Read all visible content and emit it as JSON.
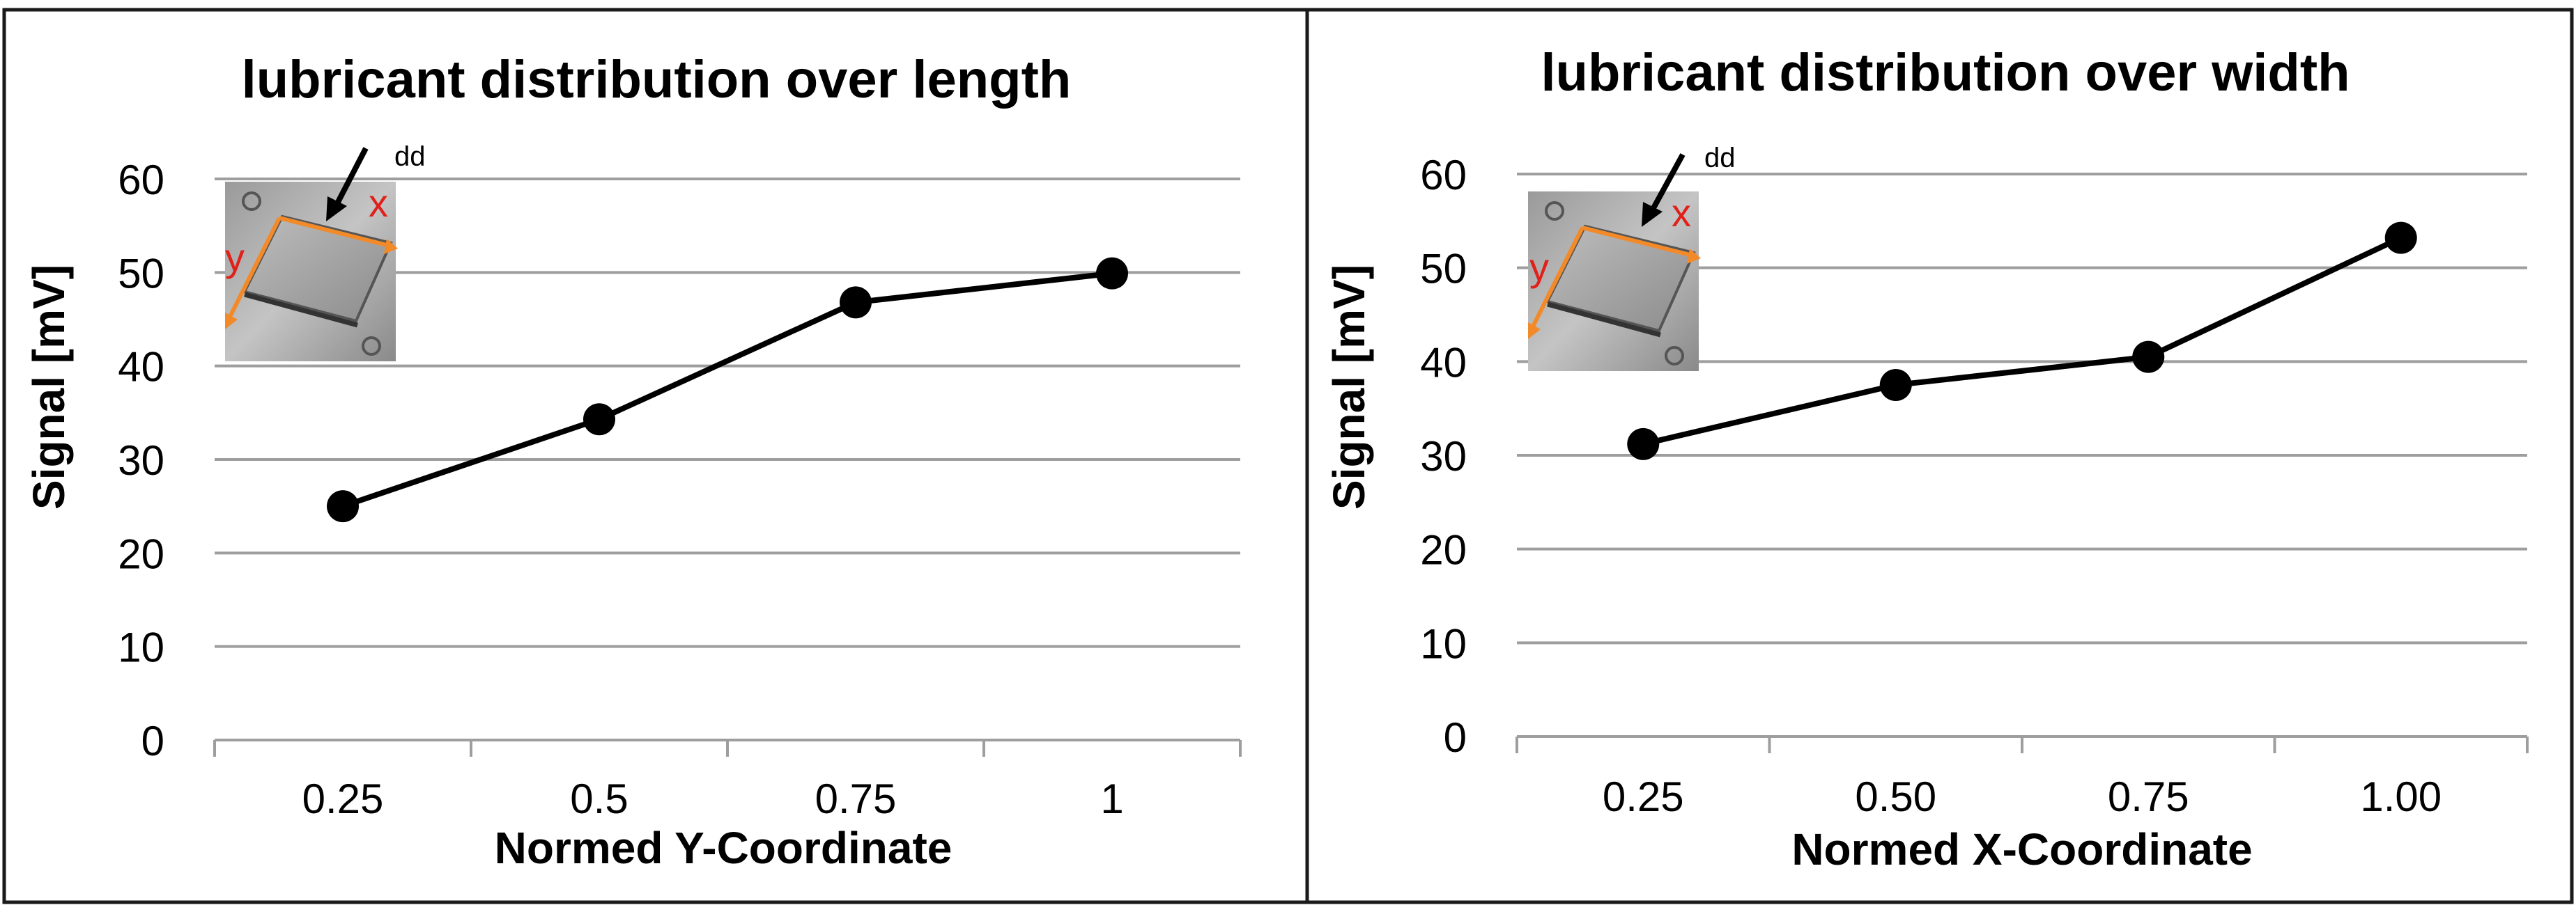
{
  "colors": {
    "frame": "#1a1a1a",
    "grid": "#9e9e9e",
    "line": "#000000",
    "marker": "#000000",
    "inset_arrow": "#f28a2a",
    "inset_label": "#e0201a",
    "inset_photo_dark": "#6e6e6e",
    "inset_photo_light": "#d0d0d0"
  },
  "chart_data": [
    {
      "type": "line",
      "title": "lubricant distribution over length",
      "xlabel": "Normed Y-Coordinate",
      "ylabel": "Signal [mV]",
      "categories": [
        "0.25",
        "0.5",
        "0.75",
        "1"
      ],
      "series": [
        {
          "name": "Signal",
          "values": [
            25,
            34.3,
            46.8,
            49.9
          ]
        }
      ],
      "ylim": [
        0,
        60
      ],
      "yticks": [
        "0",
        "10",
        "20",
        "30",
        "40",
        "50",
        "60"
      ],
      "grid": true,
      "inset": {
        "x_label": "x",
        "y_label": "y",
        "arrow_label": "dd"
      }
    },
    {
      "type": "line",
      "title": "lubricant distribution over width",
      "xlabel": "Normed X-Coordinate",
      "ylabel": "Signal [mV]",
      "categories": [
        "0.25",
        "0.50",
        "0.75",
        "1.00"
      ],
      "series": [
        {
          "name": "Signal",
          "values": [
            31.2,
            37.5,
            40.5,
            53.2
          ]
        }
      ],
      "ylim": [
        0,
        60
      ],
      "yticks": [
        "0",
        "10",
        "20",
        "30",
        "40",
        "50",
        "60"
      ],
      "grid": true,
      "inset": {
        "x_label": "x",
        "y_label": "y",
        "arrow_label": "dd"
      }
    }
  ]
}
